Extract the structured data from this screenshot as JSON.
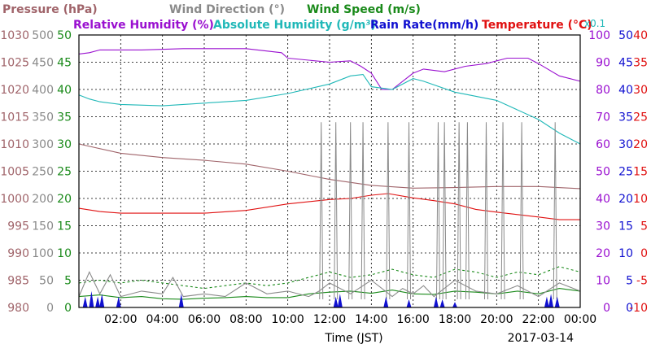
{
  "chart_data": {
    "type": "line",
    "xlabel": "Time (JST)",
    "date_label": "2017-03-14",
    "x_ticks": [
      "02:00",
      "04:00",
      "06:00",
      "08:00",
      "10:00",
      "12:00",
      "14:00",
      "16:00",
      "18:00",
      "20:00",
      "22:00",
      "00:00"
    ],
    "x_range_hours": [
      0,
      24
    ],
    "grid": true,
    "legend_placement": "top",
    "factor_note": "x0.1",
    "axes": [
      {
        "name": "Pressure (hPa)",
        "color": "#a0646a",
        "ticks": [
          "980",
          "985",
          "990",
          "995",
          "1000",
          "1005",
          "1010",
          "1015",
          "1020",
          "1025",
          "1030"
        ],
        "range": [
          980,
          1030
        ]
      },
      {
        "name": "Wind Direction (°)",
        "color": "#8a8a8a",
        "ticks": [
          "0",
          "50",
          "100",
          "150",
          "200",
          "250",
          "300",
          "350",
          "400",
          "450",
          "500"
        ],
        "range": [
          0,
          500
        ]
      },
      {
        "name": "Wind Speed (m/s)",
        "color": "#1a8a1a",
        "ticks": [
          "0",
          "5",
          "10",
          "15",
          "20",
          "25",
          "30",
          "35",
          "40",
          "45",
          "50"
        ],
        "range": [
          0,
          50
        ]
      },
      {
        "name": "Relative Humidity (%)",
        "color": "#9a10d0",
        "ticks": [
          "0",
          "10",
          "20",
          "30",
          "40",
          "50",
          "60",
          "70",
          "80",
          "90",
          "100"
        ],
        "range": [
          0,
          100
        ]
      },
      {
        "name": "Rain Rate(mm/h)",
        "color": "#1010d0",
        "ticks": [
          "0",
          "5",
          "10",
          "15",
          "20",
          "25",
          "30",
          "35",
          "40",
          "45",
          "50"
        ],
        "range": [
          0,
          50
        ]
      },
      {
        "name": "Temperature (°C)",
        "color": "#e01010",
        "ticks": [
          "-10",
          "-5",
          "0",
          "5",
          "10",
          "15",
          "20",
          "25",
          "30",
          "35",
          "40"
        ],
        "range": [
          -10,
          40
        ]
      }
    ],
    "legend": [
      {
        "label": "Pressure (hPa)",
        "color": "#a0646a",
        "row": 1
      },
      {
        "label": "Wind Direction (°)",
        "color": "#8a8a8a",
        "row": 1
      },
      {
        "label": "Wind Speed (m/s)",
        "color": "#1a8a1a",
        "row": 1
      },
      {
        "label": "Relative Humidity (%)",
        "color": "#9a10d0",
        "row": 2
      },
      {
        "label": "Absolute Humidity (g/m³)",
        "color": "#20b8b8",
        "row": 2
      },
      {
        "label": "Rain Rate(mm/h)",
        "color": "#1010d0",
        "row": 2
      },
      {
        "label": "Temperature (°C)",
        "color": "#e01010",
        "row": 2
      }
    ],
    "series": [
      {
        "name": "Pressure (hPa)",
        "color": "#a0646a",
        "axis": 0,
        "x": [
          0,
          2,
          4,
          6,
          8,
          10,
          12,
          14,
          16,
          18,
          20,
          22,
          24
        ],
        "y": [
          1010,
          1008.3,
          1007.5,
          1007,
          1006.3,
          1005,
          1003.5,
          1002.4,
          1001.9,
          1002,
          1002.2,
          1002.2,
          1001.8
        ]
      },
      {
        "name": "Temperature (°C)",
        "color": "#e01010",
        "axis": 5,
        "x": [
          0,
          1,
          2,
          4,
          6,
          8,
          10,
          12,
          13,
          14,
          14.8,
          16,
          17,
          18,
          19,
          20,
          22,
          23,
          24
        ],
        "y": [
          8.2,
          7.6,
          7.3,
          7.3,
          7.3,
          7.8,
          9,
          9.8,
          10,
          10.6,
          10.9,
          10.1,
          9.6,
          9,
          8,
          7.5,
          6.6,
          6.1,
          6.1
        ]
      },
      {
        "name": "Relative Humidity (%)",
        "color": "#9a10d0",
        "axis": 3,
        "x": [
          0,
          0.5,
          1,
          3,
          5,
          8,
          9.7,
          10,
          12,
          13,
          13.5,
          14,
          14.5,
          15,
          16,
          16.5,
          17.5,
          18.5,
          19.5,
          20.5,
          21.5,
          22,
          23,
          24
        ],
        "y": [
          93,
          93.5,
          94.5,
          94.5,
          95,
          95,
          93.5,
          91.5,
          90,
          90.5,
          88.5,
          86,
          80,
          80,
          86,
          87.5,
          86.5,
          88.5,
          89.5,
          91.5,
          91.5,
          89.5,
          85,
          83
        ]
      },
      {
        "name": "Absolute Humidity (g/m³)",
        "color": "#20b8b8",
        "axis": 3,
        "x": [
          0,
          0.5,
          1,
          2,
          4,
          6,
          8,
          10,
          12,
          13,
          13.6,
          14,
          15,
          16,
          16.5,
          18,
          20,
          22,
          23,
          24
        ],
        "y": [
          78,
          76.5,
          75.5,
          74.5,
          74,
          75,
          76,
          78.5,
          82,
          85,
          85.5,
          81,
          80,
          84,
          83,
          79,
          76,
          69,
          64,
          60
        ]
      },
      {
        "name": "Wind Speed (m/s)",
        "color": "#1a8a1a",
        "axis": 2,
        "x": [
          0,
          1,
          2,
          3,
          4,
          5,
          6,
          7,
          8,
          9,
          10,
          11,
          12,
          13,
          14,
          15,
          16,
          17,
          18,
          19,
          20,
          21,
          22,
          23,
          24
        ],
        "y": [
          2,
          2.3,
          1.8,
          2,
          1.6,
          1.5,
          1.7,
          1.8,
          2,
          1.8,
          1.8,
          2.5,
          2.8,
          3,
          2.6,
          3.2,
          2.5,
          2.4,
          3,
          2.8,
          2.5,
          3,
          2.5,
          3.5,
          3
        ]
      },
      {
        "name": "Wind Speed max",
        "color": "#1a8a1a",
        "axis": 2,
        "dashed": true,
        "x": [
          0,
          1,
          2,
          3,
          4,
          5,
          6,
          7,
          8,
          9,
          10,
          11,
          12,
          13,
          14,
          15,
          16,
          17,
          18,
          19,
          20,
          21,
          22,
          23,
          24
        ],
        "y": [
          4.5,
          5,
          4.5,
          5,
          4.5,
          4,
          3.5,
          4,
          4.5,
          4,
          4.5,
          5.5,
          6.5,
          5.5,
          6,
          7,
          6,
          5.5,
          7,
          6.5,
          5.5,
          6.5,
          6,
          7.5,
          6.5
        ]
      },
      {
        "name": "Wind Direction (°)",
        "color": "#8a8a8a",
        "axis": 1,
        "x": [
          0,
          0.5,
          1,
          1.5,
          2,
          3,
          4,
          4.5,
          5,
          6,
          7,
          8,
          9,
          10,
          11,
          11.5,
          12,
          13,
          14,
          15,
          15.5,
          16,
          16.5,
          17,
          18,
          19,
          20,
          21,
          22,
          23,
          24
        ],
        "y": [
          20,
          65,
          25,
          60,
          20,
          30,
          25,
          55,
          20,
          25,
          20,
          45,
          25,
          30,
          20,
          30,
          45,
          25,
          50,
          20,
          35,
          25,
          40,
          20,
          50,
          30,
          25,
          40,
          20,
          45,
          30
        ]
      },
      {
        "name": "Wind Direction spikes",
        "color": "#8a8a8a",
        "axis": 1,
        "spike_x": [
          11.6,
          12.3,
          13.0,
          13.6,
          14.8,
          15.8,
          17.2,
          17.5,
          18.2,
          18.6,
          19.5,
          20.3,
          21.2,
          22.8
        ]
      },
      {
        "name": "Rain Rate(mm/h)",
        "color": "#1010d0",
        "axis": 4,
        "spike_x": [
          0.3,
          0.6,
          0.9,
          1.1,
          1.9,
          4.9,
          12.3,
          12.5,
          14.7,
          15.8,
          17.1,
          17.4,
          18.0,
          22.4,
          22.6,
          22.9
        ],
        "spike_y": [
          2,
          3,
          2,
          2.5,
          2,
          2.5,
          2,
          2.5,
          2,
          1.5,
          2,
          1.5,
          1,
          2,
          2.5,
          2
        ]
      }
    ]
  }
}
